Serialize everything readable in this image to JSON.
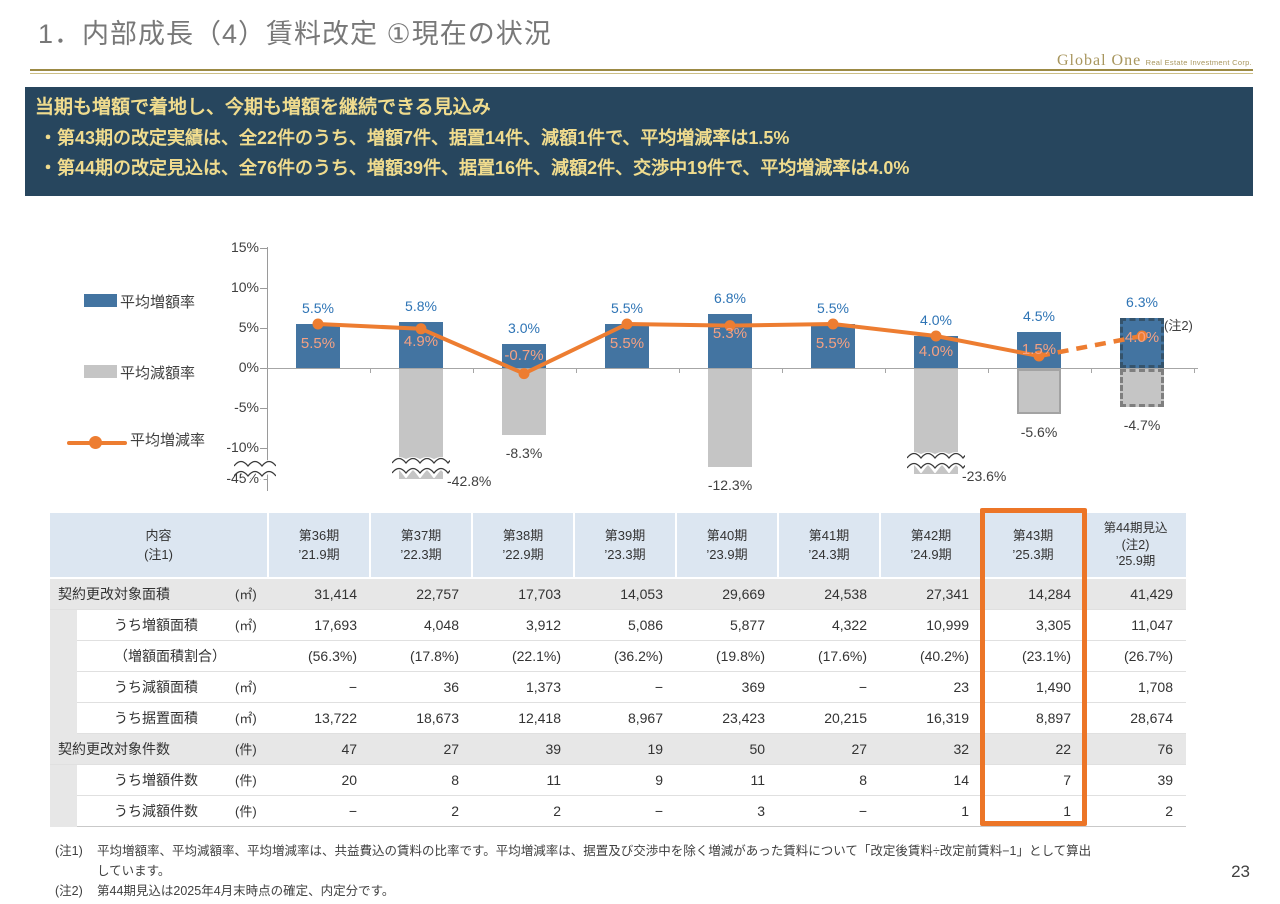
{
  "header": {
    "title": "1．内部成長（4）賃料改定 ①現在の状況",
    "logo_primary": "Global One",
    "logo_secondary": "Real Estate Investment Corp."
  },
  "summary_box": {
    "headline": "当期も増額で着地し、今期も増額を継続できる見込み",
    "bullets": [
      "・第43期の改定実績は、全22件のうち、増額7件、据置14件、減額1件で、平均増減率は1.5%",
      "・第44期の改定見込は、全76件のうち、増額39件、据置16件、減額2件、交渉中19件で、平均増減率は4.0%"
    ]
  },
  "chart_data": {
    "type": "bar+line",
    "categories": [
      "第36期",
      "第37期",
      "第38期",
      "第39期",
      "第40期",
      "第41期",
      "第42期",
      "第43期",
      "第44期見込"
    ],
    "series": [
      {
        "name": "平均増額率",
        "type": "bar",
        "color": "#4374A1",
        "values": [
          5.5,
          5.8,
          3.0,
          5.5,
          6.8,
          5.5,
          4.0,
          4.5,
          6.3
        ]
      },
      {
        "name": "平均減額率",
        "type": "bar",
        "color": "#C5C5C5",
        "values": [
          null,
          -42.8,
          -8.3,
          null,
          -12.3,
          null,
          -23.6,
          -5.6,
          -4.7
        ]
      },
      {
        "name": "平均増減率",
        "type": "line",
        "color": "#ED7D31",
        "values": [
          5.5,
          4.9,
          -0.7,
          5.5,
          5.3,
          5.5,
          4.0,
          1.5,
          4.0
        ]
      }
    ],
    "y_ticks": [
      {
        "label": "15%",
        "v": 15
      },
      {
        "label": "10%",
        "v": 10
      },
      {
        "label": "5%",
        "v": 5
      },
      {
        "label": "0%",
        "v": 0
      },
      {
        "label": "-5%",
        "v": -5
      },
      {
        "label": "-10%",
        "v": -10
      },
      {
        "label": "-45%",
        "v": -45
      }
    ],
    "axis_break_between": [
      "-10%",
      "-45%"
    ],
    "forecast_category": "第44期見込",
    "forecast_note": "(注2)",
    "legend_position": "left",
    "grid": false
  },
  "table": {
    "header": {
      "content_label": "内容",
      "content_note": "(注1)",
      "periods": [
        {
          "name": "第36期",
          "note": "",
          "era": "’21.9期"
        },
        {
          "name": "第37期",
          "note": "",
          "era": "’22.3期"
        },
        {
          "name": "第38期",
          "note": "",
          "era": "’22.9期"
        },
        {
          "name": "第39期",
          "note": "",
          "era": "’23.3期"
        },
        {
          "name": "第40期",
          "note": "",
          "era": "’23.9期"
        },
        {
          "name": "第41期",
          "note": "",
          "era": "’24.3期"
        },
        {
          "name": "第42期",
          "note": "",
          "era": "’24.9期"
        },
        {
          "name": "第43期",
          "note": "",
          "era": "’25.3期"
        },
        {
          "name": "第44期見込",
          "note": "(注2)",
          "era": "’25.9期"
        }
      ],
      "highlight_column": "第43期"
    },
    "rows": [
      {
        "label": "契約更改対象面積",
        "unit": "(㎡)",
        "indent": false,
        "values": [
          "31,414",
          "22,757",
          "17,703",
          "14,053",
          "29,669",
          "24,538",
          "27,341",
          "14,284",
          "41,429"
        ]
      },
      {
        "label": "うち増額面積",
        "unit": "(㎡)",
        "indent": true,
        "values": [
          "17,693",
          "4,048",
          "3,912",
          "5,086",
          "5,877",
          "4,322",
          "10,999",
          "3,305",
          "11,047"
        ]
      },
      {
        "label": "（増額面積割合）",
        "unit": "",
        "indent": true,
        "values": [
          "(56.3%)",
          "(17.8%)",
          "(22.1%)",
          "(36.2%)",
          "(19.8%)",
          "(17.6%)",
          "(40.2%)",
          "(23.1%)",
          "(26.7%)"
        ]
      },
      {
        "label": "うち減額面積",
        "unit": "(㎡)",
        "indent": true,
        "values": [
          "−",
          "36",
          "1,373",
          "−",
          "369",
          "−",
          "23",
          "1,490",
          "1,708"
        ]
      },
      {
        "label": "うち据置面積",
        "unit": "(㎡)",
        "indent": true,
        "values": [
          "13,722",
          "18,673",
          "12,418",
          "8,967",
          "23,423",
          "20,215",
          "16,319",
          "8,897",
          "28,674"
        ]
      },
      {
        "label": "契約更改対象件数",
        "unit": "(件)",
        "indent": false,
        "values": [
          "47",
          "27",
          "39",
          "19",
          "50",
          "27",
          "32",
          "22",
          "76"
        ]
      },
      {
        "label": "うち増額件数",
        "unit": "(件)",
        "indent": true,
        "values": [
          "20",
          "8",
          "11",
          "9",
          "11",
          "8",
          "14",
          "7",
          "39"
        ]
      },
      {
        "label": "うち減額件数",
        "unit": "(件)",
        "indent": true,
        "values": [
          "−",
          "2",
          "2",
          "−",
          "3",
          "−",
          "1",
          "1",
          "2"
        ]
      }
    ]
  },
  "footnotes": [
    {
      "label": "(注1)",
      "lines": [
        "平均増額率、平均減額率、平均増減率は、共益費込の賃料の比率です。平均増減率は、据置及び交渉中を除く増減があった賃料について「改定後賃料÷改定前賃料−1」として算出",
        "しています。"
      ]
    },
    {
      "label": "(注2)",
      "lines": [
        "第44期見込は2025年4月末時点の確定、内定分です。"
      ]
    }
  ],
  "page_number": "23"
}
